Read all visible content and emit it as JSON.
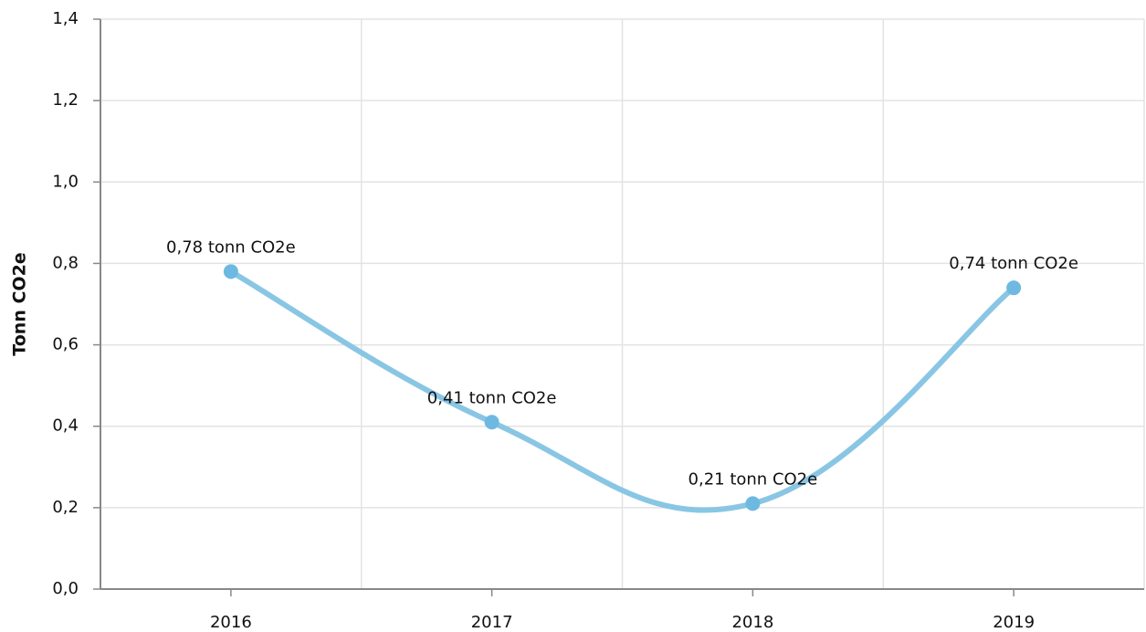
{
  "chart_data": {
    "type": "line",
    "y_label": "Tonn CO2e",
    "categories": [
      "2016",
      "2017",
      "2018",
      "2019"
    ],
    "values": [
      0.78,
      0.41,
      0.21,
      0.74
    ],
    "value_labels": [
      "0,78 tonn CO2e",
      "0,41 tonn CO2e",
      "0,21 tonn CO2e",
      "0,74 tonn CO2e"
    ],
    "color": "#89c6e4",
    "ylim": [
      0,
      1.4
    ],
    "yticks": [
      {
        "value": 0,
        "label": "0,0"
      },
      {
        "value": 0.2,
        "label": "0,2"
      },
      {
        "value": 0.4,
        "label": "0,4"
      },
      {
        "value": 0.6,
        "label": "0,6"
      },
      {
        "value": 0.8,
        "label": "0,8"
      },
      {
        "value": 1.0,
        "label": "1,0"
      },
      {
        "value": 1.2,
        "label": "1,2"
      },
      {
        "value": 1.4,
        "label": "1,4"
      }
    ],
    "grid": true
  }
}
